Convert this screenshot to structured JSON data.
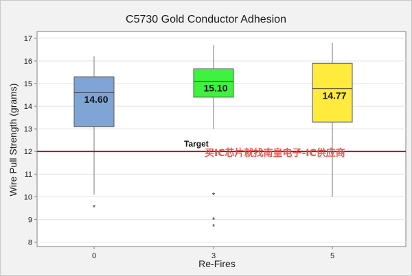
{
  "chart_data": {
    "type": "box",
    "title": "C5730 Gold Conductor Adhesion",
    "xlabel": "Re-Fires",
    "ylabel": "Wire Pull Strength (grams)",
    "ylim": [
      7.8,
      17.3
    ],
    "yticks": [
      8,
      9,
      10,
      11,
      12,
      13,
      14,
      15,
      16,
      17
    ],
    "categories": [
      "0",
      "3",
      "5"
    ],
    "grid": "horizontal",
    "boxes": [
      {
        "category": "0",
        "whisker_low": 10.1,
        "q1": 13.1,
        "median": 14.6,
        "q3": 15.3,
        "whisker_high": 16.2,
        "outliers": [
          9.6
        ],
        "median_label": "14.60",
        "color": "#7fa5d6"
      },
      {
        "category": "3",
        "whisker_low": 13.0,
        "q1": 14.4,
        "median": 15.1,
        "q3": 15.65,
        "whisker_high": 16.7,
        "outliers": [
          10.15,
          9.05,
          8.75
        ],
        "median_label": "15.10",
        "color": "#3ff23f"
      },
      {
        "category": "5",
        "whisker_low": 10.0,
        "q1": 13.3,
        "median": 14.77,
        "q3": 15.9,
        "whisker_high": 16.8,
        "outliers": [],
        "median_label": "14.77",
        "color": "#ffea3d"
      }
    ],
    "reference_line": {
      "value": 12.0,
      "label": "Target",
      "color": "#c00000"
    }
  },
  "watermark_text": "买IC芯片就找南皇电子-IC供应商"
}
